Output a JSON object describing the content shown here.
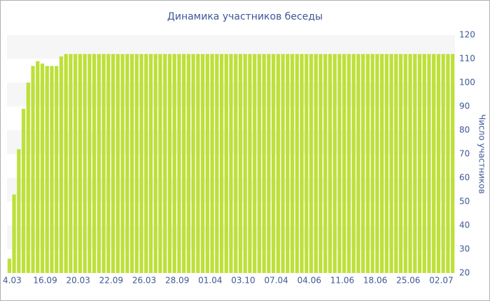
{
  "chart_data": {
    "type": "bar",
    "title": "Динамика участников беседы",
    "y_label": "Число участников",
    "categories": [
      "4.03",
      null,
      null,
      null,
      null,
      null,
      null,
      "16.09",
      null,
      null,
      null,
      null,
      null,
      null,
      "20.03",
      null,
      null,
      null,
      null,
      null,
      null,
      "22.09",
      null,
      null,
      null,
      null,
      null,
      null,
      "26.03",
      null,
      null,
      null,
      null,
      null,
      null,
      "28.09",
      null,
      null,
      null,
      null,
      null,
      null,
      "01.04",
      null,
      null,
      null,
      null,
      null,
      null,
      "03.10",
      null,
      null,
      null,
      null,
      null,
      null,
      "07.04",
      null,
      null,
      null,
      null,
      null,
      null,
      "04.06",
      null,
      null,
      null,
      null,
      null,
      null,
      "11.06",
      null,
      null,
      null,
      null,
      null,
      null,
      "18.06",
      null,
      null,
      null,
      null,
      null,
      null,
      "25.06",
      null,
      null,
      null,
      null,
      null,
      null,
      "02.07",
      null,
      null,
      null
    ],
    "values": [
      26,
      53,
      72,
      89,
      100,
      107,
      109,
      108,
      107,
      107,
      107,
      111,
      112,
      112,
      112,
      112,
      112,
      112,
      112,
      112,
      112,
      112,
      112,
      112,
      112,
      112,
      112,
      112,
      112,
      112,
      112,
      112,
      112,
      112,
      112,
      112,
      112,
      112,
      112,
      112,
      112,
      112,
      112,
      112,
      112,
      112,
      112,
      112,
      112,
      112,
      112,
      112,
      112,
      112,
      112,
      112,
      112,
      112,
      112,
      112,
      112,
      112,
      112,
      112,
      112,
      112,
      112,
      112,
      112,
      112,
      112,
      112,
      112,
      112,
      112,
      112,
      112,
      112,
      112,
      112,
      112,
      112,
      112,
      112,
      112,
      112,
      112,
      112,
      112,
      112,
      112,
      112,
      112,
      112,
      112
    ],
    "color": "#bde03a",
    "ylim": [
      20,
      120
    ],
    "yticks": [
      20,
      30,
      40,
      50,
      60,
      70,
      80,
      90,
      100,
      110,
      120
    ],
    "y_axis_side": "right",
    "grid": "bands"
  }
}
